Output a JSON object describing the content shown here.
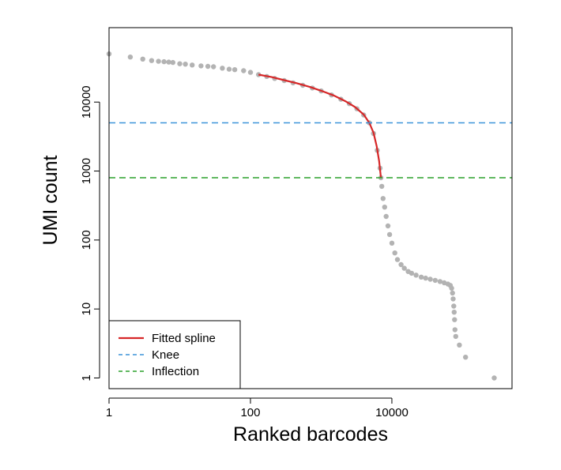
{
  "chart_data": {
    "type": "scatter",
    "xlabel": "Ranked barcodes",
    "ylabel": "UMI count",
    "x_scale": "log10",
    "y_scale": "log10",
    "xlim": [
      1,
      500000
    ],
    "ylim": [
      0.7,
      120000
    ],
    "x_ticks": [
      {
        "value": 1,
        "label": "1"
      },
      {
        "value": 100,
        "label": "100"
      },
      {
        "value": 10000,
        "label": "10000"
      }
    ],
    "y_ticks": [
      {
        "value": 1,
        "label": "1"
      },
      {
        "value": 10,
        "label": "10"
      },
      {
        "value": 100,
        "label": "100"
      },
      {
        "value": 1000,
        "label": "1000"
      },
      {
        "value": 10000,
        "label": "10000"
      }
    ],
    "grid": false,
    "legend_position": "bottom-left",
    "series": [
      {
        "kind": "points",
        "color": "#b3b3b3",
        "points": [
          [
            1,
            50000
          ],
          [
            2,
            45000
          ],
          [
            3,
            42000
          ],
          [
            4,
            40000
          ],
          [
            5,
            39000
          ],
          [
            6,
            38500
          ],
          [
            7,
            38000
          ],
          [
            8,
            37500
          ],
          [
            10,
            36000
          ],
          [
            12,
            35500
          ],
          [
            15,
            34500
          ],
          [
            20,
            33500
          ],
          [
            25,
            33000
          ],
          [
            30,
            32500
          ],
          [
            40,
            31000
          ],
          [
            50,
            30000
          ],
          [
            60,
            29500
          ],
          [
            80,
            28500
          ],
          [
            100,
            27000
          ],
          [
            130,
            25000
          ],
          [
            170,
            23500
          ],
          [
            220,
            22000
          ],
          [
            300,
            20500
          ],
          [
            400,
            19000
          ],
          [
            550,
            17500
          ],
          [
            750,
            16000
          ],
          [
            1000,
            14500
          ],
          [
            1400,
            12700
          ],
          [
            1900,
            11000
          ],
          [
            2500,
            9500
          ],
          [
            3200,
            8000
          ],
          [
            4000,
            6500
          ],
          [
            4800,
            5000
          ],
          [
            5500,
            3500
          ],
          [
            6200,
            2000
          ],
          [
            6800,
            1100
          ],
          [
            7000,
            800
          ],
          [
            7200,
            600
          ],
          [
            7500,
            400
          ],
          [
            7900,
            300
          ],
          [
            8300,
            220
          ],
          [
            8800,
            160
          ],
          [
            9300,
            120
          ],
          [
            10000,
            90
          ],
          [
            11000,
            65
          ],
          [
            12000,
            52
          ],
          [
            13500,
            44
          ],
          [
            15000,
            39
          ],
          [
            17000,
            35
          ],
          [
            19000,
            33
          ],
          [
            22000,
            31
          ],
          [
            26000,
            29
          ],
          [
            30000,
            28
          ],
          [
            35000,
            27
          ],
          [
            41000,
            26
          ],
          [
            48000,
            25
          ],
          [
            55000,
            24
          ],
          [
            62000,
            23
          ],
          [
            67000,
            22
          ],
          [
            70000,
            20
          ],
          [
            72000,
            17
          ],
          [
            73500,
            14
          ],
          [
            75000,
            11
          ],
          [
            76000,
            9
          ],
          [
            77000,
            7
          ],
          [
            78000,
            5
          ],
          [
            80000,
            4
          ],
          [
            90000,
            3
          ],
          [
            110000,
            2
          ],
          [
            280000,
            1
          ]
        ]
      },
      {
        "name": "Fitted spline",
        "kind": "line",
        "color": "#d62728",
        "points": [
          [
            130,
            25000
          ],
          [
            200,
            23000
          ],
          [
            300,
            20800
          ],
          [
            450,
            18800
          ],
          [
            700,
            16500
          ],
          [
            1000,
            14600
          ],
          [
            1500,
            12500
          ],
          [
            2200,
            10300
          ],
          [
            3000,
            8500
          ],
          [
            4000,
            6600
          ],
          [
            4800,
            5000
          ],
          [
            5500,
            3600
          ],
          [
            6100,
            2300
          ],
          [
            6600,
            1400
          ],
          [
            7000,
            800
          ]
        ]
      },
      {
        "name": "Knee",
        "kind": "hline",
        "value": 5000,
        "color": "#3b94d9",
        "dash": "dashed"
      },
      {
        "name": "Inflection",
        "kind": "hline",
        "value": 800,
        "color": "#2ca02c",
        "dash": "dashed"
      }
    ]
  }
}
